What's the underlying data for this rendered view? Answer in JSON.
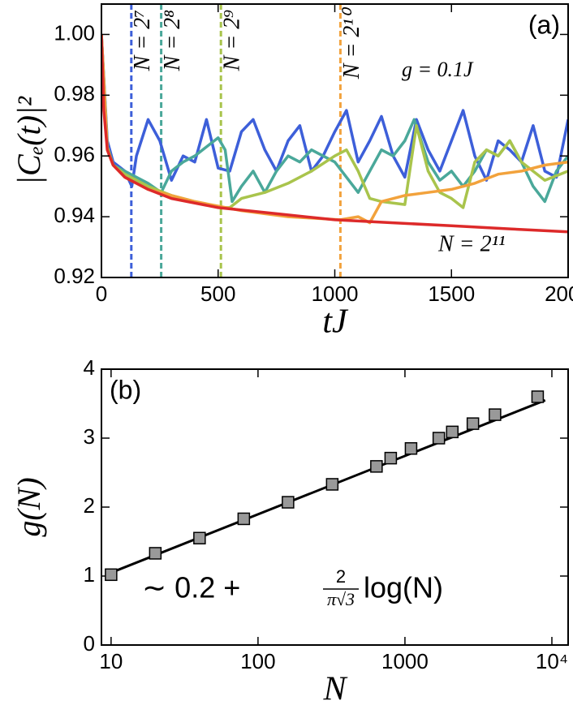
{
  "chart_data": [
    {
      "type": "line",
      "panel_label": "(a)",
      "annotation": "g = 0.1J",
      "xlabel": "tJ",
      "ylabel": "|Cₑ(t)|²",
      "xlim": [
        0,
        2000
      ],
      "xticks": [
        0,
        500,
        1000,
        1500,
        2000
      ],
      "ylim": [
        0.92,
        1.01
      ],
      "yticks": [
        0.92,
        0.94,
        0.96,
        0.98,
        {
          "value": 1.0,
          "label": "1.00"
        }
      ],
      "series": [
        {
          "name": "N = 2⁷",
          "color": "#3d5fd9",
          "marker_x": 128,
          "x": [
            0,
            25,
            50,
            100,
            130,
            150,
            200,
            250,
            300,
            350,
            400,
            450,
            500,
            550,
            600,
            650,
            700,
            750,
            800,
            850,
            900,
            950,
            1000,
            1050,
            1100,
            1150,
            1200,
            1250,
            1300,
            1350,
            1400,
            1450,
            1500,
            1550,
            1600,
            1650,
            1700,
            1750,
            1800,
            1850,
            1900,
            1950,
            2000
          ],
          "values": [
            1.0,
            0.965,
            0.958,
            0.955,
            0.95,
            0.96,
            0.972,
            0.965,
            0.952,
            0.96,
            0.958,
            0.972,
            0.956,
            0.955,
            0.968,
            0.972,
            0.962,
            0.955,
            0.965,
            0.97,
            0.955,
            0.96,
            0.968,
            0.975,
            0.958,
            0.965,
            0.973,
            0.96,
            0.953,
            0.972,
            0.962,
            0.955,
            0.965,
            0.975,
            0.96,
            0.952,
            0.965,
            0.962,
            0.958,
            0.97,
            0.955,
            0.953,
            0.972
          ]
        },
        {
          "name": "N = 2⁸",
          "color": "#4aa89a",
          "marker_x": 256,
          "x": [
            0,
            25,
            50,
            100,
            150,
            200,
            256,
            300,
            350,
            400,
            450,
            500,
            530,
            560,
            600,
            650,
            700,
            750,
            800,
            850,
            900,
            950,
            1000,
            1050,
            1100,
            1150,
            1200,
            1250,
            1300,
            1340,
            1400,
            1450,
            1500,
            1550,
            1600,
            1650,
            1700,
            1750,
            1800,
            1850,
            1900,
            1950,
            2000
          ],
          "values": [
            1.0,
            0.963,
            0.957,
            0.955,
            0.953,
            0.951,
            0.948,
            0.955,
            0.958,
            0.96,
            0.963,
            0.966,
            0.962,
            0.945,
            0.95,
            0.955,
            0.948,
            0.955,
            0.96,
            0.958,
            0.962,
            0.96,
            0.958,
            0.953,
            0.948,
            0.955,
            0.962,
            0.96,
            0.965,
            0.972,
            0.958,
            0.952,
            0.955,
            0.95,
            0.955,
            0.962,
            0.96,
            0.965,
            0.958,
            0.95,
            0.945,
            0.955,
            0.96
          ]
        },
        {
          "name": "N = 2⁹",
          "color": "#a9c44c",
          "marker_x": 512,
          "x": [
            0,
            25,
            50,
            100,
            200,
            300,
            400,
            512,
            550,
            600,
            700,
            800,
            900,
            1000,
            1050,
            1100,
            1150,
            1200,
            1300,
            1350,
            1400,
            1450,
            1500,
            1550,
            1600,
            1650,
            1700,
            1750,
            1800,
            1900,
            2000
          ],
          "values": [
            1.0,
            0.963,
            0.957,
            0.954,
            0.95,
            0.947,
            0.945,
            0.943,
            0.943,
            0.946,
            0.948,
            0.951,
            0.955,
            0.96,
            0.962,
            0.955,
            0.946,
            0.945,
            0.944,
            0.97,
            0.955,
            0.948,
            0.946,
            0.943,
            0.958,
            0.962,
            0.96,
            0.965,
            0.958,
            0.952,
            0.955
          ]
        },
        {
          "name": "N = 2¹⁰",
          "color": "#f2a23c",
          "marker_x": 1024,
          "x": [
            0,
            25,
            50,
            100,
            200,
            400,
            600,
            800,
            1024,
            1100,
            1150,
            1200,
            1300,
            1400,
            1500,
            1600,
            1700,
            1800,
            1900,
            2000
          ],
          "values": [
            1.0,
            0.962,
            0.957,
            0.953,
            0.949,
            0.945,
            0.942,
            0.94,
            0.939,
            0.94,
            0.938,
            0.945,
            0.947,
            0.948,
            0.949,
            0.951,
            0.954,
            0.955,
            0.957,
            0.958
          ]
        },
        {
          "name": "N = 2¹¹",
          "color": "#dd2a2a",
          "x": [
            0,
            10,
            25,
            50,
            100,
            200,
            300,
            500,
            750,
            1000,
            1250,
            1500,
            1750,
            2000
          ],
          "values": [
            1.0,
            0.975,
            0.962,
            0.957,
            0.953,
            0.949,
            0.946,
            0.943,
            0.941,
            0.939,
            0.938,
            0.937,
            0.936,
            0.935
          ]
        }
      ]
    },
    {
      "type": "scatter",
      "panel_label": "(b)",
      "xlabel": "N",
      "ylabel": "g(N)",
      "xscale": "log",
      "annotation": {
        "prefix": "∼ 0.2 +",
        "numerator": "2",
        "denominator": "π√3",
        "suffix": "log(N)"
      },
      "xlim": [
        8.6,
        12900
      ],
      "xticks": [
        10,
        100,
        1000,
        {
          "value": 10000,
          "label": "10⁴"
        }
      ],
      "ylim": [
        0,
        4
      ],
      "yticks": [
        0,
        1,
        2,
        3,
        4
      ],
      "series": [
        {
          "style": "line",
          "color": "#000000",
          "x": [
            10,
            9000
          ],
          "values": [
            1.05,
            3.55
          ]
        },
        {
          "style": "marker",
          "color": "#999999",
          "x": [
            10,
            20,
            40,
            80,
            160,
            320,
            640,
            800,
            1100,
            1700,
            2100,
            2900,
            4100,
            8000
          ],
          "values": [
            1.02,
            1.33,
            1.55,
            1.83,
            2.07,
            2.33,
            2.59,
            2.71,
            2.85,
            3.0,
            3.09,
            3.21,
            3.34,
            3.6
          ]
        }
      ]
    }
  ]
}
